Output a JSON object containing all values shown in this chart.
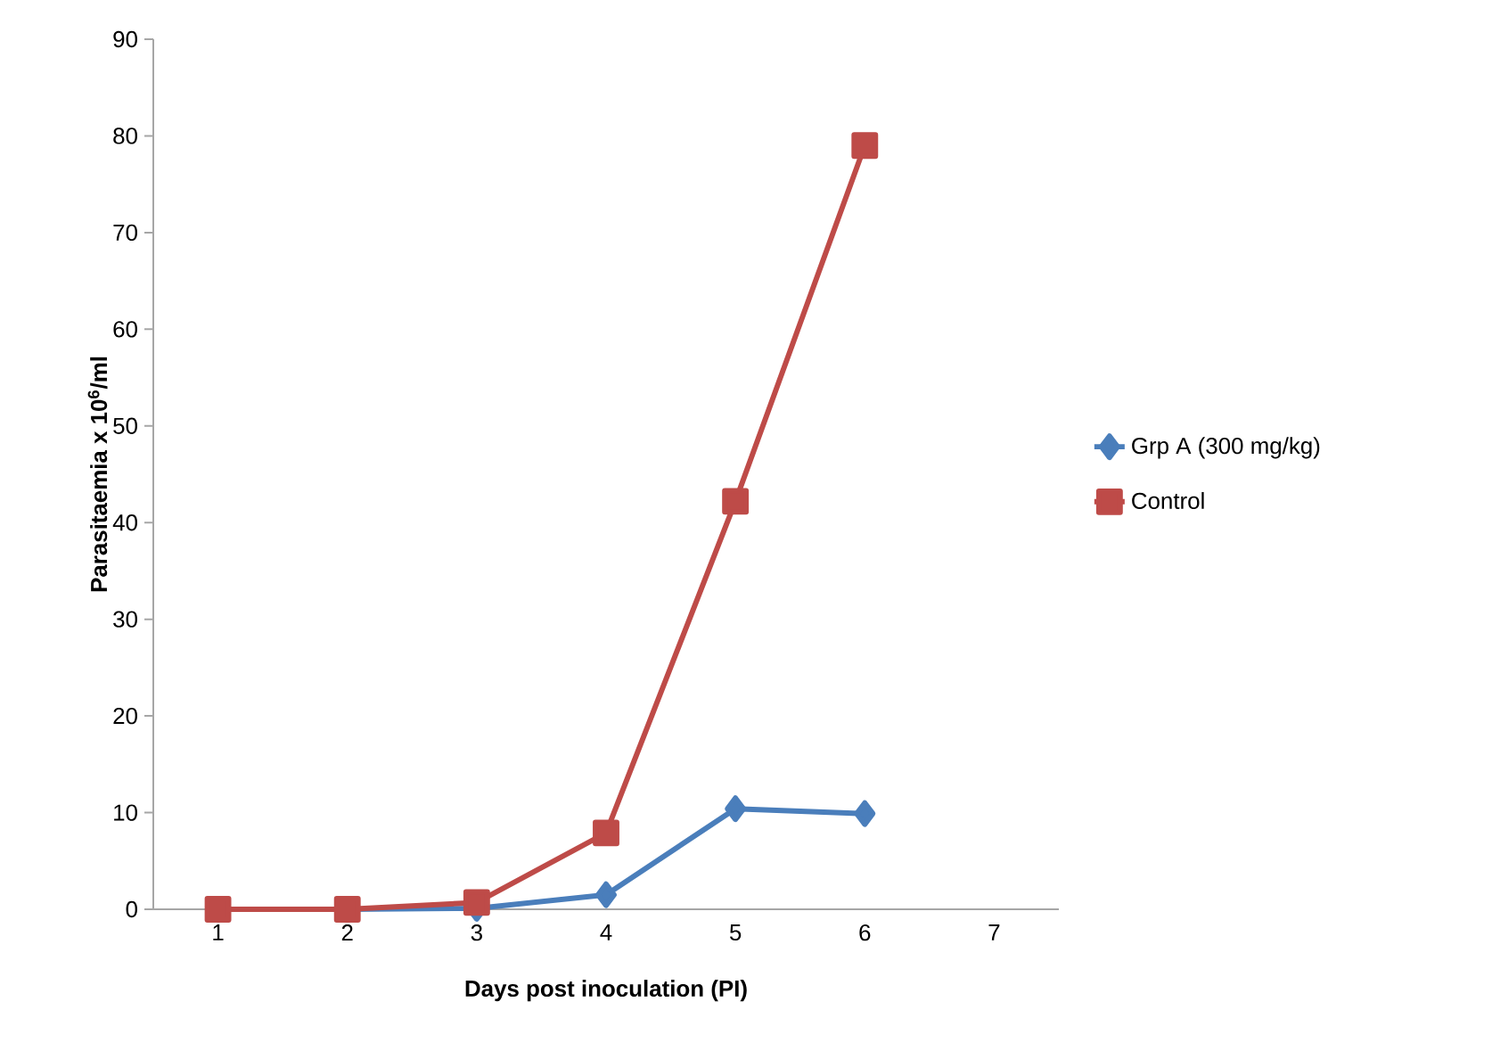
{
  "chart_data": {
    "type": "line",
    "xlabel": "Days post inoculation (PI)",
    "ylabel": "Parasitaemia x 10$^{6}$/ml",
    "categories": [
      "1",
      "2",
      "3",
      "4",
      "5",
      "6",
      "7"
    ],
    "series": [
      {
        "name": "Grp A (300 mg/kg)",
        "color": "#4a7ebb",
        "marker": "diamond",
        "values": [
          0,
          0,
          0.1,
          1.5,
          10.4,
          9.9,
          null
        ]
      },
      {
        "name": "Control",
        "color": "#be4b48",
        "marker": "square",
        "values": [
          0,
          0,
          0.7,
          7.9,
          42.2,
          79,
          null
        ]
      }
    ],
    "ylim": [
      0,
      90
    ],
    "yticks": [
      0,
      10,
      20,
      30,
      40,
      50,
      60,
      70,
      80,
      90
    ],
    "grid": false,
    "legend": "right",
    "line_style": "solid"
  }
}
